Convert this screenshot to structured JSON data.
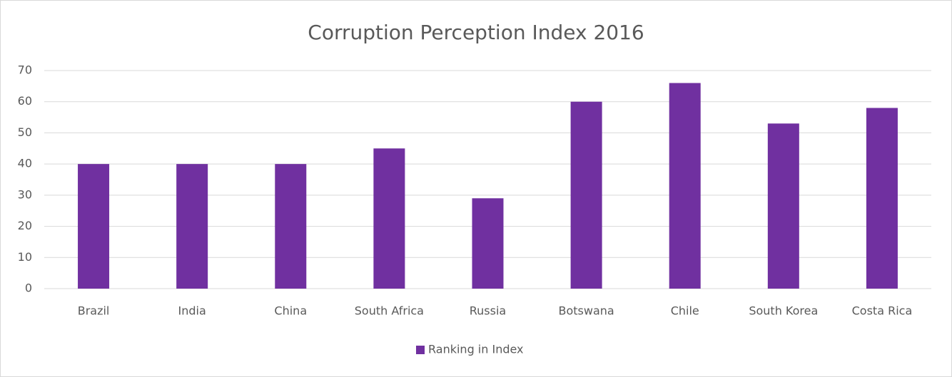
{
  "chart_data": {
    "type": "bar",
    "title": "Corruption Perception Index 2016",
    "categories": [
      "Brazil",
      "India",
      "China",
      "South Africa",
      "Russia",
      "Botswana",
      "Chile",
      "South Korea",
      "Costa Rica"
    ],
    "series": [
      {
        "name": "Ranking in Index",
        "color": "#7030a0",
        "values": [
          40,
          40,
          40,
          45,
          29,
          60,
          66,
          53,
          58
        ]
      }
    ],
    "ylim": [
      0,
      70
    ],
    "yticks": [
      0,
      10,
      20,
      30,
      40,
      50,
      60,
      70
    ],
    "grid": true,
    "legend": "bottom"
  }
}
